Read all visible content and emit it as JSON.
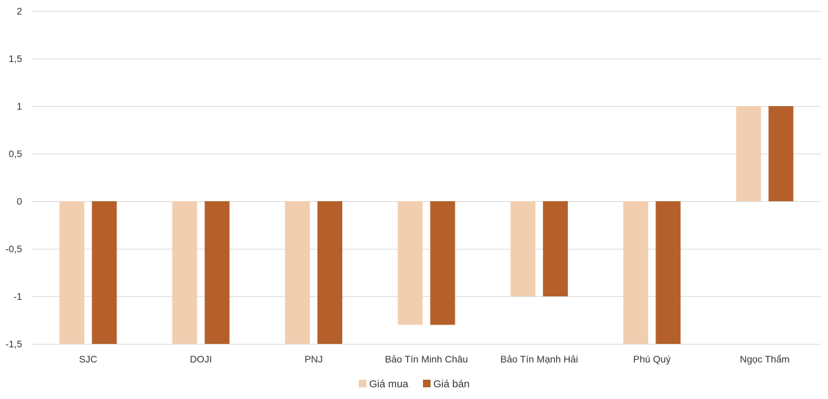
{
  "chart_data": {
    "type": "bar",
    "categories": [
      "SJC",
      "DOJI",
      "PNJ",
      "Bảo Tín Minh Châu",
      "Bảo Tín Mạnh Hải",
      "Phú Quý",
      "Ngọc Thẩm"
    ],
    "series": [
      {
        "name": "Giá mua",
        "color": "#F2CEB0",
        "values": [
          -1.5,
          -1.5,
          -1.5,
          -1.3,
          -1,
          -1.5,
          1
        ]
      },
      {
        "name": "Giá bán",
        "color": "#B5602A",
        "values": [
          -1.5,
          -1.5,
          -1.5,
          -1.3,
          -1,
          -1.5,
          1
        ]
      }
    ],
    "ylim": [
      -1.5,
      2
    ],
    "yticks": [
      2,
      1.5,
      1,
      0.5,
      0,
      -0.5,
      -1,
      -1.5
    ],
    "ytick_labels": [
      "2",
      "1,5",
      "1",
      "0,5",
      "0",
      "-0,5",
      "-1",
      "-1,5"
    ],
    "grid": true,
    "legend_position": "bottom"
  }
}
